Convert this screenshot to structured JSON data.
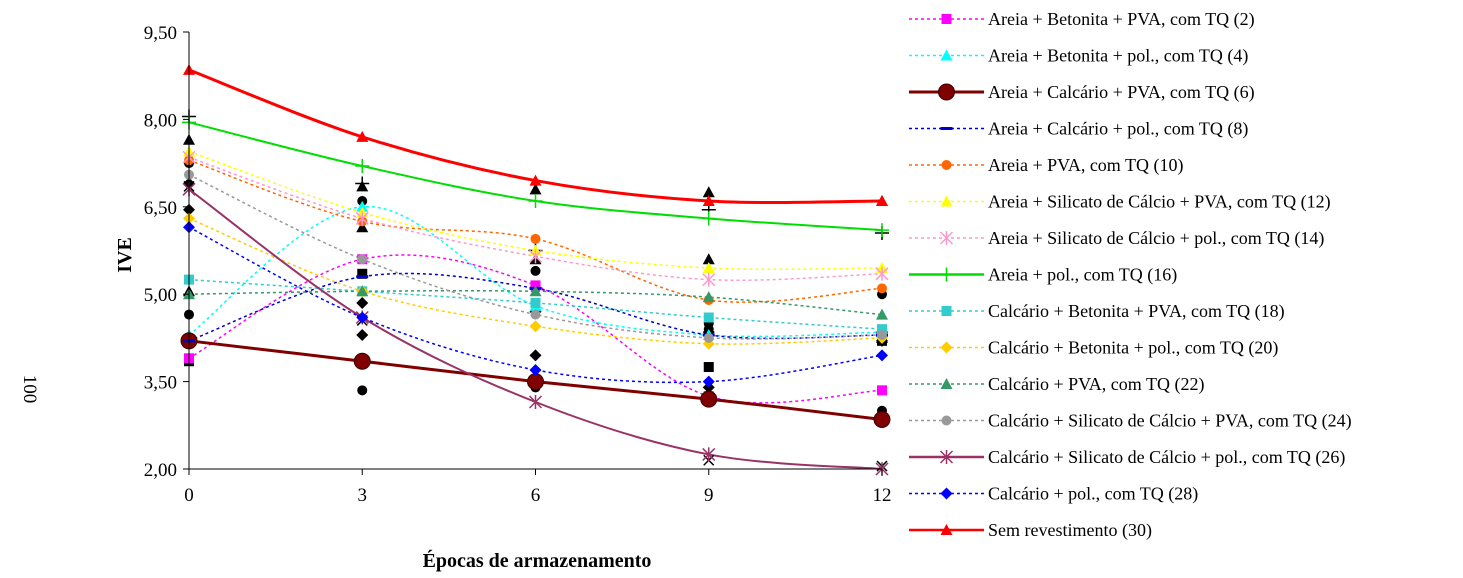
{
  "chart_data": {
    "type": "line",
    "xlabel": "Épocas de armazenamento",
    "ylabel": "IVE",
    "side_label": "100",
    "x": [
      0,
      3,
      6,
      9,
      12
    ],
    "x_tick_labels": [
      "0",
      "3",
      "6",
      "9",
      "12"
    ],
    "y_ticks": [
      2.0,
      3.5,
      5.0,
      6.5,
      8.0,
      9.5
    ],
    "y_tick_labels": [
      "2,00",
      "3,50",
      "5,00",
      "6,50",
      "8,00",
      "9,50"
    ],
    "xlim": [
      0,
      12
    ],
    "ylim": [
      2.0,
      9.5
    ],
    "grid": false,
    "legend_position": "right",
    "series": [
      {
        "name": "Areia + Betonita + PVA, com TQ (2)",
        "color": "#ff00ff",
        "dash": "dot",
        "marker": "square",
        "values": [
          3.9,
          5.6,
          5.15,
          3.25,
          3.35
        ]
      },
      {
        "name": "Areia + Betonita + pol., com TQ (4)",
        "color": "#00ffff",
        "dash": "dot",
        "marker": "triangle",
        "values": [
          4.3,
          6.5,
          4.8,
          4.3,
          4.35
        ]
      },
      {
        "name": "Areia + Calcário + PVA, com TQ (6)",
        "color": "#800000",
        "dash": "solid",
        "marker": "circle-big",
        "values": [
          4.2,
          3.85,
          3.5,
          3.2,
          2.85
        ]
      },
      {
        "name": "Areia + Calcário + pol., com TQ (8)",
        "color": "#0000cc",
        "dash": "dot",
        "marker": "dash",
        "values": [
          4.2,
          5.3,
          5.1,
          4.3,
          4.3
        ]
      },
      {
        "name": "Areia + PVA, com TQ (10)",
        "color": "#ff6600",
        "dash": "dot",
        "marker": "circle",
        "values": [
          7.3,
          6.25,
          5.95,
          4.9,
          5.1
        ]
      },
      {
        "name": "Areia + Silicato de Cálcio + PVA, com TQ (12)",
        "color": "#ffff00",
        "dash": "dot",
        "marker": "triangle",
        "values": [
          7.45,
          6.4,
          5.75,
          5.45,
          5.45
        ]
      },
      {
        "name": "Areia + Silicato de Cálcio + pol., com TQ (14)",
        "color": "#ff99cc",
        "dash": "dot",
        "marker": "asterisk",
        "values": [
          7.35,
          6.3,
          5.65,
          5.25,
          5.35
        ]
      },
      {
        "name": "Areia + pol., com TQ (16)",
        "color": "#00dd00",
        "dash": "solid",
        "marker": "plus",
        "values": [
          7.95,
          7.2,
          6.6,
          6.3,
          6.1
        ]
      },
      {
        "name": "Calcário + Betonita + PVA, com TQ (18)",
        "color": "#33cccc",
        "dash": "dot",
        "marker": "square",
        "values": [
          5.25,
          5.05,
          4.85,
          4.6,
          4.4
        ]
      },
      {
        "name": "Calcário + Betonita + pol., com TQ (20)",
        "color": "#ffcc00",
        "dash": "dot",
        "marker": "diamond",
        "values": [
          6.3,
          5.05,
          4.45,
          4.15,
          4.25
        ]
      },
      {
        "name": "Calcário + PVA, com TQ (22)",
        "color": "#339966",
        "dash": "dot",
        "marker": "triangle",
        "values": [
          5.0,
          5.05,
          5.05,
          4.95,
          4.65
        ]
      },
      {
        "name": "Calcário + Silicato de Cálcio + PVA, com TQ (24)",
        "color": "#999999",
        "dash": "dot",
        "marker": "circle",
        "values": [
          7.05,
          5.6,
          4.65,
          4.25,
          4.3
        ]
      },
      {
        "name": "Calcário + Silicato de Cálcio + pol., com TQ (26)",
        "color": "#993366",
        "dash": "solid",
        "marker": "asterisk",
        "values": [
          6.8,
          4.6,
          3.15,
          2.25,
          2.0
        ]
      },
      {
        "name": "Calcário + pol., com TQ (28)",
        "color": "#0000ff",
        "dash": "dot",
        "marker": "diamond",
        "values": [
          6.15,
          4.6,
          3.7,
          3.5,
          3.95
        ]
      },
      {
        "name": "Sem revestimento (30)",
        "color": "#ff0000",
        "dash": "solid",
        "marker": "triangle",
        "values": [
          8.85,
          7.7,
          6.95,
          6.6,
          6.6
        ]
      }
    ],
    "black_markers": [
      {
        "marker": "square",
        "points": [
          [
            0,
            3.85
          ],
          [
            3,
            5.35
          ],
          [
            6,
            5.15
          ],
          [
            9,
            3.75
          ],
          [
            12,
            4.2
          ]
        ]
      },
      {
        "marker": "triangle",
        "points": [
          [
            0,
            7.65
          ],
          [
            3,
            6.85
          ],
          [
            6,
            6.8
          ],
          [
            9,
            6.75
          ],
          [
            12,
            6.6
          ]
        ]
      },
      {
        "marker": "circle",
        "points": [
          [
            0,
            4.65
          ],
          [
            3,
            6.6
          ],
          [
            6,
            5.4
          ],
          [
            9,
            4.4
          ],
          [
            12,
            5.0
          ]
        ]
      },
      {
        "marker": "circle",
        "points": [
          [
            0,
            7.25
          ],
          [
            3,
            3.35
          ],
          [
            6,
            3.4
          ],
          [
            9,
            4.5
          ],
          [
            12,
            3.0
          ]
        ]
      },
      {
        "marker": "triangle",
        "points": [
          [
            0,
            5.05
          ],
          [
            3,
            6.15
          ],
          [
            6,
            5.6
          ],
          [
            9,
            5.6
          ],
          [
            12,
            4.25
          ]
        ]
      },
      {
        "marker": "diamond",
        "points": [
          [
            0,
            6.45
          ],
          [
            3,
            4.3
          ],
          [
            6,
            3.95
          ],
          [
            9,
            3.4
          ],
          [
            12,
            4.35
          ]
        ]
      },
      {
        "marker": "diamond",
        "points": [
          [
            0,
            6.9
          ],
          [
            3,
            4.85
          ],
          [
            6,
            4.7
          ],
          [
            9,
            4.35
          ],
          [
            12,
            4.2
          ]
        ]
      },
      {
        "marker": "cross",
        "points": [
          [
            0,
            6.85
          ],
          [
            3,
            4.55
          ],
          [
            6,
            3.5
          ],
          [
            9,
            2.15
          ],
          [
            12,
            2.05
          ]
        ]
      },
      {
        "marker": "plus",
        "points": [
          [
            0,
            8.05
          ],
          [
            3,
            6.9
          ],
          [
            6,
            5.75
          ],
          [
            9,
            6.45
          ],
          [
            12,
            6.05
          ]
        ]
      }
    ]
  }
}
